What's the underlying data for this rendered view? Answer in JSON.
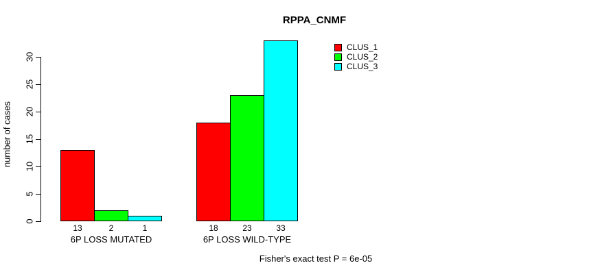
{
  "window": {
    "background": "#ffffff"
  },
  "chart_data": {
    "type": "bar",
    "title": "RPPA_CNMF",
    "ylabel": "number of cases",
    "xlabel": "",
    "ylim": [
      0,
      33
    ],
    "yticks": [
      0,
      5,
      10,
      15,
      20,
      25,
      30
    ],
    "categories": [
      "6P LOSS MUTATED",
      "6P LOSS WILD-TYPE"
    ],
    "series": [
      {
        "name": "CLUS_1",
        "color": "#ff0000",
        "values": [
          13,
          18
        ]
      },
      {
        "name": "CLUS_2",
        "color": "#00ff00",
        "values": [
          2,
          23
        ]
      },
      {
        "name": "CLUS_3",
        "color": "#00ffff",
        "values": [
          1,
          33
        ]
      }
    ],
    "bar_value_labels": [
      [
        13,
        2,
        1
      ],
      [
        18,
        23,
        33
      ]
    ],
    "grid": false,
    "legend_position": "top-right",
    "annotation": "Fisher's exact test P = 6e-05"
  },
  "legend": {
    "items": [
      {
        "label": "CLUS_1",
        "color": "#ff0000"
      },
      {
        "label": "CLUS_2",
        "color": "#00ff00"
      },
      {
        "label": "CLUS_3",
        "color": "#00ffff"
      }
    ]
  },
  "footer": {
    "text": "Fisher's exact test P = 6e-05"
  }
}
